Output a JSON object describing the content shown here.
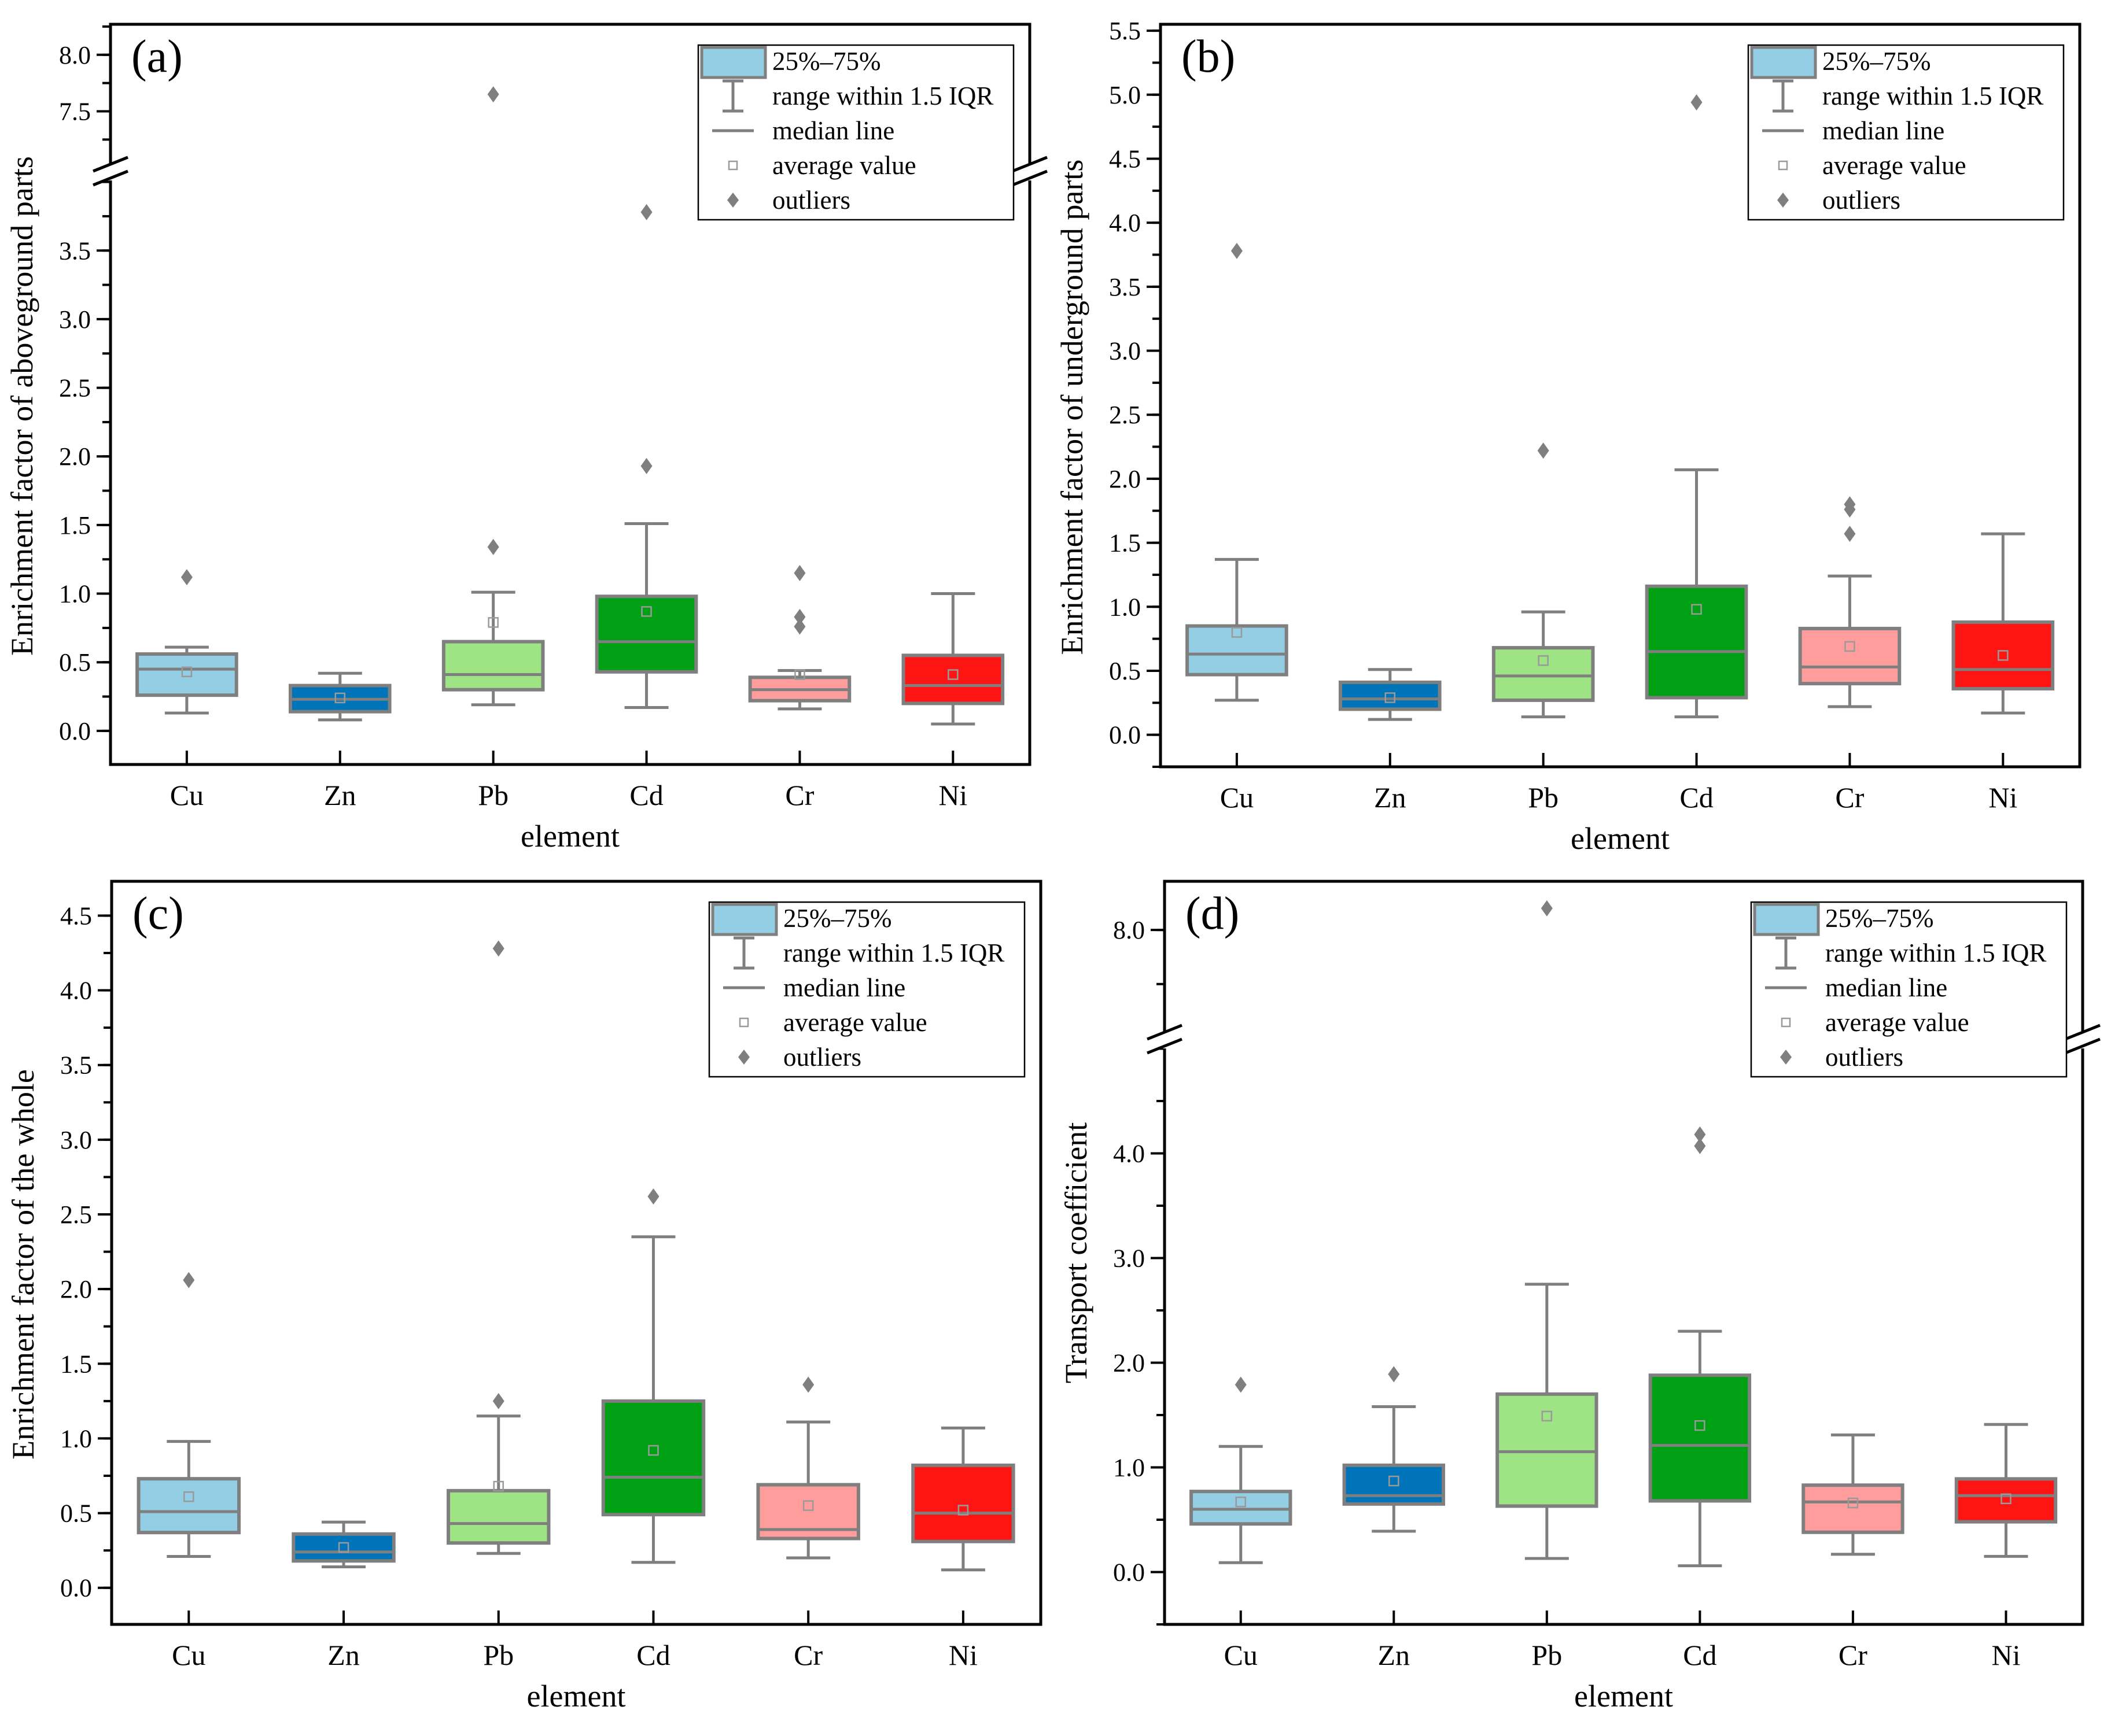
{
  "legend": {
    "box_label": "25%–75%",
    "whisker_label": "range within 1.5 IQR",
    "median_label": "median line",
    "mean_label": "average value",
    "outlier_label": "outliers"
  },
  "colors": {
    "Cu": "#94cee4",
    "Zn": "#0074b8",
    "Pb": "#9ee384",
    "Cd": "#00a014",
    "Cr": "#ff9c9c",
    "Ni": "#ff1414",
    "stroke": "#7f7f7f",
    "mean_marker": "#9a9a9a"
  },
  "chart_data": [
    {
      "type": "box",
      "panel_label": "(a)",
      "xlabel": "element",
      "ylabel": "Enrichment factor of aboveground parts",
      "categories": [
        "Cu",
        "Zn",
        "Pb",
        "Cd",
        "Cr",
        "Ni"
      ],
      "axis_segments": [
        {
          "range": [
            -0.245,
            4.07
          ],
          "ticks": [
            "0.0",
            "0.5",
            "1.0",
            "1.5",
            "2.0",
            "2.5",
            "3.0",
            "3.5"
          ],
          "minor_step": 0.25
        },
        {
          "range": [
            6.96,
            8.27
          ],
          "ticks": [
            "7.5",
            "8.0"
          ],
          "minor_step": 0.25
        }
      ],
      "boxes": [
        {
          "whisker_low": 0.13,
          "q1": 0.26,
          "median": 0.45,
          "q3": 0.56,
          "whisker_high": 0.61,
          "mean": 0.43,
          "outliers": [
            1.12
          ]
        },
        {
          "whisker_low": 0.08,
          "q1": 0.14,
          "median": 0.23,
          "q3": 0.33,
          "whisker_high": 0.42,
          "mean": 0.24,
          "outliers": []
        },
        {
          "whisker_low": 0.19,
          "q1": 0.3,
          "median": 0.41,
          "q3": 0.65,
          "whisker_high": 1.01,
          "mean": 0.79,
          "outliers": [
            1.34,
            7.65
          ]
        },
        {
          "whisker_low": 0.17,
          "q1": 0.43,
          "median": 0.65,
          "q3": 0.98,
          "whisker_high": 1.51,
          "mean": 0.87,
          "outliers": [
            1.93,
            3.78
          ]
        },
        {
          "whisker_low": 0.16,
          "q1": 0.22,
          "median": 0.3,
          "q3": 0.39,
          "whisker_high": 0.44,
          "mean": 0.41,
          "outliers": [
            0.76,
            0.83,
            1.15
          ]
        },
        {
          "whisker_low": 0.05,
          "q1": 0.2,
          "median": 0.33,
          "q3": 0.55,
          "whisker_high": 1.0,
          "mean": 0.41,
          "outliers": []
        }
      ]
    },
    {
      "type": "box",
      "panel_label": "(b)",
      "xlabel": "element",
      "ylabel": "Enrichment factor of underground parts",
      "categories": [
        "Cu",
        "Zn",
        "Pb",
        "Cd",
        "Cr",
        "Ni"
      ],
      "axis_segments": [
        {
          "range": [
            -0.25,
            5.55
          ],
          "ticks": [
            "0.0",
            "0.5",
            "1.0",
            "1.5",
            "2.0",
            "2.5",
            "3.0",
            "3.5",
            "4.0",
            "4.5",
            "5.0",
            "5.5"
          ],
          "minor_step": 0.25
        }
      ],
      "boxes": [
        {
          "whisker_low": 0.27,
          "q1": 0.47,
          "median": 0.63,
          "q3": 0.85,
          "whisker_high": 1.37,
          "mean": 0.8,
          "outliers": [
            3.78
          ]
        },
        {
          "whisker_low": 0.12,
          "q1": 0.2,
          "median": 0.28,
          "q3": 0.41,
          "whisker_high": 0.51,
          "mean": 0.29,
          "outliers": []
        },
        {
          "whisker_low": 0.14,
          "q1": 0.27,
          "median": 0.46,
          "q3": 0.68,
          "whisker_high": 0.96,
          "mean": 0.58,
          "outliers": [
            2.22
          ]
        },
        {
          "whisker_low": 0.14,
          "q1": 0.29,
          "median": 0.65,
          "q3": 1.16,
          "whisker_high": 2.07,
          "mean": 0.98,
          "outliers": [
            4.94
          ]
        },
        {
          "whisker_low": 0.22,
          "q1": 0.4,
          "median": 0.53,
          "q3": 0.83,
          "whisker_high": 1.24,
          "mean": 0.69,
          "outliers": [
            1.57,
            1.76,
            1.8
          ]
        },
        {
          "whisker_low": 0.17,
          "q1": 0.36,
          "median": 0.51,
          "q3": 0.88,
          "whisker_high": 1.57,
          "mean": 0.62,
          "outliers": []
        }
      ]
    },
    {
      "type": "box",
      "panel_label": "(c)",
      "xlabel": "element",
      "ylabel": "Enrichment factor of the whole",
      "categories": [
        "Cu",
        "Zn",
        "Pb",
        "Cd",
        "Cr",
        "Ni"
      ],
      "axis_segments": [
        {
          "range": [
            -0.245,
            4.73
          ],
          "ticks": [
            "0.0",
            "0.5",
            "1.0",
            "1.5",
            "2.0",
            "2.5",
            "3.0",
            "3.5",
            "4.0",
            "4.5"
          ],
          "minor_step": 0.25
        }
      ],
      "boxes": [
        {
          "whisker_low": 0.21,
          "q1": 0.37,
          "median": 0.51,
          "q3": 0.73,
          "whisker_high": 0.98,
          "mean": 0.61,
          "outliers": [
            2.06
          ]
        },
        {
          "whisker_low": 0.14,
          "q1": 0.18,
          "median": 0.24,
          "q3": 0.36,
          "whisker_high": 0.44,
          "mean": 0.27,
          "outliers": []
        },
        {
          "whisker_low": 0.23,
          "q1": 0.3,
          "median": 0.43,
          "q3": 0.65,
          "whisker_high": 1.15,
          "mean": 0.68,
          "outliers": [
            1.25,
            4.28
          ]
        },
        {
          "whisker_low": 0.17,
          "q1": 0.49,
          "median": 0.74,
          "q3": 1.25,
          "whisker_high": 2.35,
          "mean": 0.92,
          "outliers": [
            2.62
          ]
        },
        {
          "whisker_low": 0.2,
          "q1": 0.33,
          "median": 0.39,
          "q3": 0.69,
          "whisker_high": 1.11,
          "mean": 0.55,
          "outliers": [
            1.36
          ]
        },
        {
          "whisker_low": 0.12,
          "q1": 0.31,
          "median": 0.5,
          "q3": 0.82,
          "whisker_high": 1.07,
          "mean": 0.52,
          "outliers": []
        }
      ]
    },
    {
      "type": "box",
      "panel_label": "(d)",
      "xlabel": "element",
      "ylabel": "Transport coefficient",
      "categories": [
        "Cu",
        "Zn",
        "Pb",
        "Cd",
        "Cr",
        "Ni"
      ],
      "axis_segments": [
        {
          "range": [
            -0.5,
            5.08
          ],
          "ticks": [
            "0.0",
            "1.0",
            "2.0",
            "3.0",
            "4.0"
          ],
          "minor_step": 0.5
        },
        {
          "range": [
            6.98,
            8.45
          ],
          "ticks": [
            "8.0"
          ],
          "minor_step": 0.5
        }
      ],
      "boxes": [
        {
          "whisker_low": 0.09,
          "q1": 0.46,
          "median": 0.6,
          "q3": 0.77,
          "whisker_high": 1.2,
          "mean": 0.67,
          "outliers": [
            1.79
          ]
        },
        {
          "whisker_low": 0.39,
          "q1": 0.65,
          "median": 0.73,
          "q3": 1.02,
          "whisker_high": 1.58,
          "mean": 0.87,
          "outliers": [
            1.89
          ]
        },
        {
          "whisker_low": 0.13,
          "q1": 0.63,
          "median": 1.15,
          "q3": 1.7,
          "whisker_high": 2.75,
          "mean": 1.49,
          "outliers": [
            8.2
          ]
        },
        {
          "whisker_low": 0.06,
          "q1": 0.68,
          "median": 1.21,
          "q3": 1.88,
          "whisker_high": 2.3,
          "mean": 1.4,
          "outliers": [
            4.07,
            4.18
          ]
        },
        {
          "whisker_low": 0.17,
          "q1": 0.38,
          "median": 0.67,
          "q3": 0.83,
          "whisker_high": 1.31,
          "mean": 0.66,
          "outliers": []
        },
        {
          "whisker_low": 0.15,
          "q1": 0.48,
          "median": 0.73,
          "q3": 0.89,
          "whisker_high": 1.41,
          "mean": 0.7,
          "outliers": []
        }
      ]
    }
  ]
}
